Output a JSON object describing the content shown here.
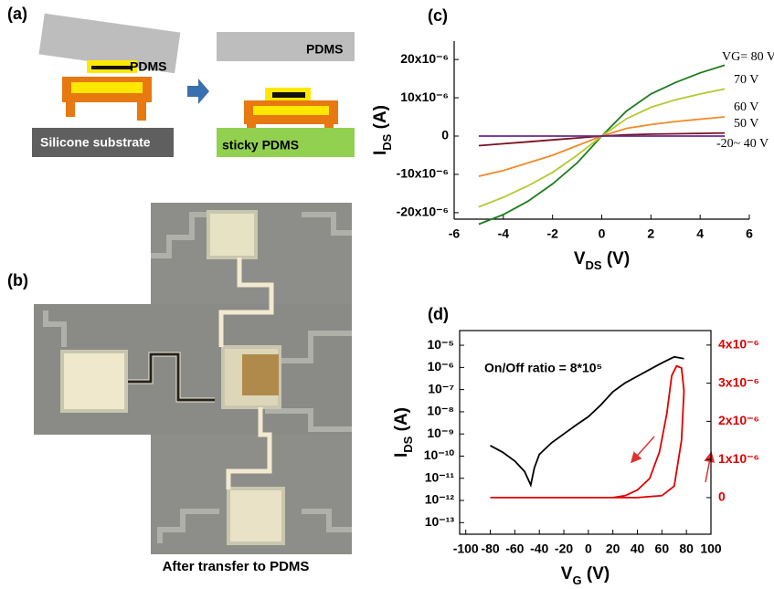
{
  "panels": {
    "a": {
      "label": "(a)",
      "texts": [
        "PDMS",
        "Silicone substrate",
        "PDMS",
        "sticky PDMS"
      ]
    },
    "b": {
      "label": "(b)",
      "caption": "After transfer to PDMS"
    }
  },
  "chart_data": [
    {
      "type": "line",
      "title": "(c)",
      "xlabel": [
        "V",
        "DS",
        " (V)"
      ],
      "ylabel": [
        "I",
        "DS",
        " (A)"
      ],
      "x": [
        -5,
        -4,
        -3,
        -2,
        -1,
        0,
        1,
        2,
        3,
        4,
        5
      ],
      "xlim": [
        -6,
        6
      ],
      "xticks": [
        -6,
        -4,
        -2,
        0,
        2,
        4,
        6
      ],
      "ylim": [
        -2.17e-05,
        2.48e-05
      ],
      "yticks": [
        {
          "value": -2e-05,
          "label": "-20x10⁻⁶"
        },
        {
          "value": -1e-05,
          "label": "-10x10⁻⁶"
        },
        0,
        {
          "value": 1e-05,
          "label": "10x10⁻⁶"
        },
        {
          "value": 2e-05,
          "label": "20x10⁻⁶"
        }
      ],
      "series": [
        {
          "name": "VG= 80 V",
          "color": "#1e7d1e",
          "values": [
            -2.3e-05,
            -2.05e-05,
            -1.7e-05,
            -1.25e-05,
            -7e-06,
            0,
            6.5e-06,
            1.1e-05,
            1.4e-05,
            1.65e-05,
            1.85e-05
          ]
        },
        {
          "name": "70 V",
          "color": "#b5c832",
          "values": [
            -1.85e-05,
            -1.6e-05,
            -1.3e-05,
            -9.5e-06,
            -5e-06,
            0,
            4.5e-06,
            7.5e-06,
            9.5e-06,
            1.1e-05,
            1.23e-05
          ]
        },
        {
          "name": "60 V",
          "color": "#f08a28",
          "values": [
            -1.05e-05,
            -9e-06,
            -7e-06,
            -5e-06,
            -2.5e-06,
            0,
            2e-06,
            3e-06,
            3.8e-06,
            4.4e-06,
            5e-06
          ]
        },
        {
          "name": "50 V",
          "color": "#7a1020",
          "values": [
            -2.5e-06,
            -2e-06,
            -1.5e-06,
            -1e-06,
            -5e-07,
            0,
            3e-07,
            5e-07,
            6e-07,
            7e-07,
            8e-07
          ]
        },
        {
          "name": "-20~ 40 V",
          "color": "#6a2a8a",
          "values": [
            0,
            0,
            0,
            0,
            0,
            0,
            0,
            0,
            0,
            0,
            0
          ]
        }
      ]
    },
    {
      "type": "line",
      "title": "(d)",
      "annotation": "On/Off ratio = 8*10⁵",
      "xlabel": [
        "V",
        "G",
        " (V)"
      ],
      "ylabel": [
        "I",
        "DS",
        " (A)"
      ],
      "xlim": [
        -105,
        100
      ],
      "xticks": [
        -100,
        -80,
        -60,
        -40,
        -20,
        0,
        20,
        40,
        60,
        80,
        100
      ],
      "ylog": true,
      "ylim": [
        3e-14,
        4.6e-05
      ],
      "yticks": [
        {
          "value": 1e-13,
          "label": "10⁻¹³"
        },
        {
          "value": 1e-12,
          "label": "10⁻¹²"
        },
        {
          "value": 1e-11,
          "label": "10⁻¹¹"
        },
        {
          "value": 1e-10,
          "label": "10⁻¹⁰"
        },
        {
          "value": 1e-09,
          "label": "10⁻⁹"
        },
        {
          "value": 1e-08,
          "label": "10⁻⁸"
        },
        {
          "value": 1e-07,
          "label": "10⁻⁷"
        },
        {
          "value": 1e-06,
          "label": "10⁻⁶"
        },
        {
          "value": 1e-05,
          "label": "10⁻⁵"
        }
      ],
      "y2lim": [
        -9.6e-07,
        4.38e-06
      ],
      "y2ticks": [
        0,
        {
          "value": 1e-06,
          "label": "1x10⁻⁶"
        },
        {
          "value": 2e-06,
          "label": "2x10⁻⁶"
        },
        {
          "value": 3e-06,
          "label": "3x10⁻⁶"
        },
        {
          "value": 4e-06,
          "label": "4x10⁻⁶"
        }
      ],
      "series": [
        {
          "color": "#000000",
          "x": [
            -80,
            -70,
            -60,
            -52,
            -47,
            -44,
            -40,
            -30,
            -20,
            -10,
            0,
            10,
            20,
            30,
            40,
            50,
            60,
            70,
            78
          ],
          "values": [
            3e-10,
            1.5e-10,
            6e-11,
            2e-11,
            5e-12,
            3e-11,
            1.2e-10,
            4e-10,
            1e-09,
            2.5e-09,
            6e-09,
            2e-08,
            8e-08,
            2e-07,
            4e-07,
            8e-07,
            1.6e-06,
            3e-06,
            2.5e-06
          ]
        },
        {
          "color": "#e00000",
          "axis": "y2",
          "x": [
            -80,
            0,
            40,
            60,
            70,
            76,
            78,
            76,
            72,
            68,
            64,
            58,
            50,
            40,
            30,
            20,
            0
          ],
          "values": [
            0,
            0,
            0,
            5e-08,
            3e-07,
            1.5e-06,
            2.8e-06,
            3.4e-06,
            3.45e-06,
            3.2e-06,
            2.2e-06,
            1.2e-06,
            5e-07,
            2e-07,
            5e-08,
            0,
            0
          ]
        }
      ]
    }
  ]
}
